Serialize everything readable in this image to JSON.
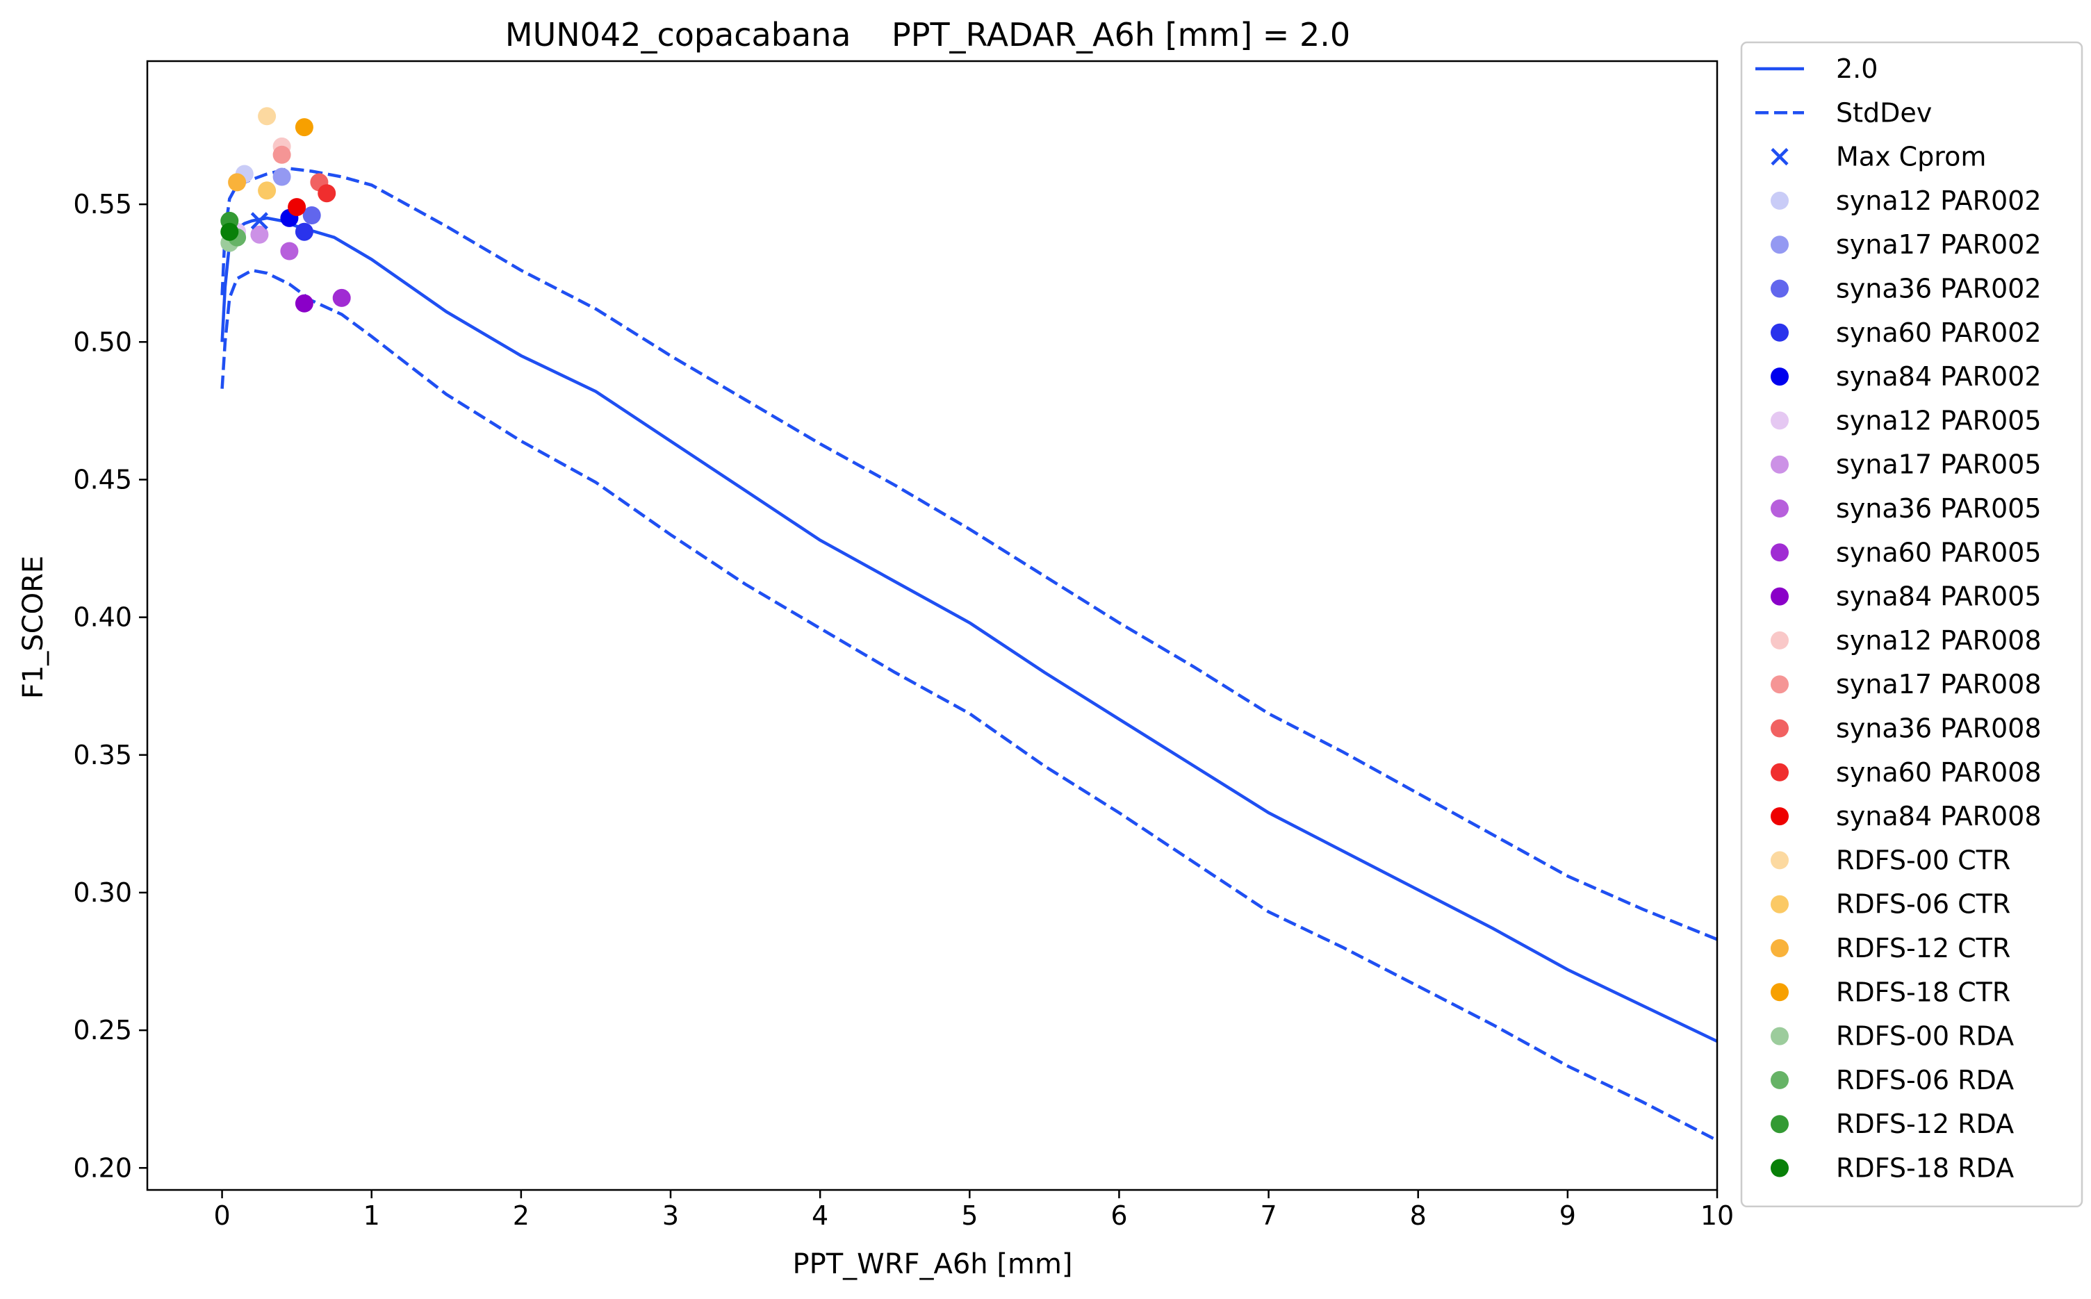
{
  "chart_data": {
    "type": "line",
    "title": "MUN042_copacabana    PPT_RADAR_A6h [mm] = 2.0",
    "xlabel": "PPT_WRF_A6h [mm]",
    "ylabel": "F1_SCORE",
    "xlim": [
      -0.5,
      10
    ],
    "ylim": [
      0.192,
      0.602
    ],
    "xticks": [
      0,
      1,
      2,
      3,
      4,
      5,
      6,
      7,
      8,
      9,
      10
    ],
    "yticks": [
      0.2,
      0.25,
      0.3,
      0.35,
      0.4,
      0.45,
      0.5,
      0.55
    ],
    "ytick_labels": [
      "0.20",
      "0.25",
      "0.30",
      "0.35",
      "0.40",
      "0.45",
      "0.50",
      "0.55"
    ],
    "grid": false,
    "legend_position": "outside-right",
    "series": [
      {
        "name": "2.0",
        "style": "solid",
        "color": "#1f4ff2",
        "points": [
          [
            0.0,
            0.5
          ],
          [
            0.02,
            0.52
          ],
          [
            0.05,
            0.536
          ],
          [
            0.1,
            0.541
          ],
          [
            0.15,
            0.543
          ],
          [
            0.2,
            0.544
          ],
          [
            0.3,
            0.545
          ],
          [
            0.4,
            0.544
          ],
          [
            0.5,
            0.542
          ],
          [
            0.75,
            0.538
          ],
          [
            1.0,
            0.53
          ],
          [
            1.5,
            0.511
          ],
          [
            2.0,
            0.495
          ],
          [
            2.5,
            0.482
          ],
          [
            3.0,
            0.464
          ],
          [
            3.5,
            0.446
          ],
          [
            4.0,
            0.428
          ],
          [
            4.5,
            0.413
          ],
          [
            5.0,
            0.398
          ],
          [
            5.5,
            0.38
          ],
          [
            6.0,
            0.363
          ],
          [
            6.5,
            0.346
          ],
          [
            7.0,
            0.329
          ],
          [
            7.5,
            0.315
          ],
          [
            8.0,
            0.301
          ],
          [
            8.5,
            0.287
          ],
          [
            9.0,
            0.272
          ],
          [
            9.5,
            0.259
          ],
          [
            10.0,
            0.246
          ]
        ]
      },
      {
        "name": "StdDev",
        "style": "dashed",
        "color": "#1f4ff2",
        "points": [
          [
            0.0,
            0.517
          ],
          [
            0.02,
            0.54
          ],
          [
            0.05,
            0.552
          ],
          [
            0.1,
            0.557
          ],
          [
            0.2,
            0.559
          ],
          [
            0.3,
            0.561
          ],
          [
            0.45,
            0.563
          ],
          [
            0.6,
            0.562
          ],
          [
            0.8,
            0.56
          ],
          [
            1.0,
            0.557
          ],
          [
            1.5,
            0.542
          ],
          [
            2.0,
            0.526
          ],
          [
            2.5,
            0.512
          ],
          [
            3.0,
            0.495
          ],
          [
            3.5,
            0.479
          ],
          [
            4.0,
            0.463
          ],
          [
            4.5,
            0.448
          ],
          [
            5.0,
            0.432
          ],
          [
            5.5,
            0.415
          ],
          [
            6.0,
            0.398
          ],
          [
            6.5,
            0.382
          ],
          [
            7.0,
            0.365
          ],
          [
            7.5,
            0.351
          ],
          [
            8.0,
            0.336
          ],
          [
            8.5,
            0.321
          ],
          [
            9.0,
            0.306
          ],
          [
            9.5,
            0.294
          ],
          [
            10.0,
            0.283
          ]
        ]
      },
      {
        "name": "",
        "style": "dashed",
        "color": "#1f4ff2",
        "points": [
          [
            0.0,
            0.483
          ],
          [
            0.02,
            0.5
          ],
          [
            0.05,
            0.516
          ],
          [
            0.1,
            0.523
          ],
          [
            0.2,
            0.526
          ],
          [
            0.3,
            0.525
          ],
          [
            0.45,
            0.521
          ],
          [
            0.6,
            0.515
          ],
          [
            0.8,
            0.51
          ],
          [
            1.0,
            0.502
          ],
          [
            1.5,
            0.481
          ],
          [
            2.0,
            0.464
          ],
          [
            2.5,
            0.449
          ],
          [
            3.0,
            0.43
          ],
          [
            3.5,
            0.412
          ],
          [
            4.0,
            0.396
          ],
          [
            4.5,
            0.38
          ],
          [
            5.0,
            0.365
          ],
          [
            5.5,
            0.346
          ],
          [
            6.0,
            0.329
          ],
          [
            6.5,
            0.311
          ],
          [
            7.0,
            0.293
          ],
          [
            7.5,
            0.28
          ],
          [
            8.0,
            0.266
          ],
          [
            8.5,
            0.252
          ],
          [
            9.0,
            0.237
          ],
          [
            9.5,
            0.224
          ],
          [
            10.0,
            0.21
          ]
        ]
      }
    ],
    "max_marker": {
      "name": "Max Cprom",
      "x": 0.25,
      "y": 0.544,
      "color": "#1f4ff2"
    },
    "scatter": [
      {
        "name": "syna12 PAR002",
        "color": "#c9ccf7",
        "x": 0.15,
        "y": 0.561
      },
      {
        "name": "syna17 PAR002",
        "color": "#9499f2",
        "x": 0.4,
        "y": 0.56
      },
      {
        "name": "syna36 PAR002",
        "color": "#6166ed",
        "x": 0.6,
        "y": 0.546
      },
      {
        "name": "syna60 PAR002",
        "color": "#2a33ec",
        "x": 0.55,
        "y": 0.54
      },
      {
        "name": "syna84 PAR002",
        "color": "#0000ee",
        "x": 0.45,
        "y": 0.545
      },
      {
        "name": "syna12 PAR005",
        "color": "#e5c8f2",
        "x": 0.1,
        "y": 0.54
      },
      {
        "name": "syna17 PAR005",
        "color": "#cc91e6",
        "x": 0.25,
        "y": 0.539
      },
      {
        "name": "syna36 PAR005",
        "color": "#b75fdc",
        "x": 0.45,
        "y": 0.533
      },
      {
        "name": "syna60 PAR005",
        "color": "#a02cd3",
        "x": 0.8,
        "y": 0.516
      },
      {
        "name": "syna84 PAR005",
        "color": "#8a00c8",
        "x": 0.55,
        "y": 0.514
      },
      {
        "name": "syna12 PAR008",
        "color": "#f9c8c8",
        "x": 0.4,
        "y": 0.571
      },
      {
        "name": "syna17 PAR008",
        "color": "#f59595",
        "x": 0.4,
        "y": 0.568
      },
      {
        "name": "syna36 PAR008",
        "color": "#f16161",
        "x": 0.65,
        "y": 0.558
      },
      {
        "name": "syna60 PAR008",
        "color": "#f02e2e",
        "x": 0.7,
        "y": 0.554
      },
      {
        "name": "syna84 PAR008",
        "color": "#ee0000",
        "x": 0.5,
        "y": 0.549
      },
      {
        "name": "RDFS-00 CTR",
        "color": "#fcd9a0",
        "x": 0.3,
        "y": 0.582
      },
      {
        "name": "RDFS-06 CTR",
        "color": "#fbc964",
        "x": 0.3,
        "y": 0.555
      },
      {
        "name": "RDFS-12 CTR",
        "color": "#f9b23a",
        "x": 0.1,
        "y": 0.558
      },
      {
        "name": "RDFS-18 CTR",
        "color": "#f7a000",
        "x": 0.55,
        "y": 0.578
      },
      {
        "name": "RDFS-00 RDA",
        "color": "#9ccc9c",
        "x": 0.05,
        "y": 0.536
      },
      {
        "name": "RDFS-06 RDA",
        "color": "#66b366",
        "x": 0.1,
        "y": 0.538
      },
      {
        "name": "RDFS-12 RDA",
        "color": "#339a33",
        "x": 0.05,
        "y": 0.544
      },
      {
        "name": "RDFS-18 RDA",
        "color": "#088008",
        "x": 0.05,
        "y": 0.54
      }
    ],
    "legend": [
      {
        "label": "2.0",
        "kind": "line",
        "color": "#1f4ff2"
      },
      {
        "label": "StdDev",
        "kind": "dashed",
        "color": "#1f4ff2"
      },
      {
        "label": "Max Cprom",
        "kind": "x",
        "color": "#1f4ff2"
      },
      {
        "label": "syna12 PAR002",
        "kind": "dot",
        "color": "#c9ccf7"
      },
      {
        "label": "syna17 PAR002",
        "kind": "dot",
        "color": "#9499f2"
      },
      {
        "label": "syna36 PAR002",
        "kind": "dot",
        "color": "#6166ed"
      },
      {
        "label": "syna60 PAR002",
        "kind": "dot",
        "color": "#2a33ec"
      },
      {
        "label": "syna84 PAR002",
        "kind": "dot",
        "color": "#0000ee"
      },
      {
        "label": "syna12 PAR005",
        "kind": "dot",
        "color": "#e5c8f2"
      },
      {
        "label": "syna17 PAR005",
        "kind": "dot",
        "color": "#cc91e6"
      },
      {
        "label": "syna36 PAR005",
        "kind": "dot",
        "color": "#b75fdc"
      },
      {
        "label": "syna60 PAR005",
        "kind": "dot",
        "color": "#a02cd3"
      },
      {
        "label": "syna84 PAR005",
        "kind": "dot",
        "color": "#8a00c8"
      },
      {
        "label": "syna12 PAR008",
        "kind": "dot",
        "color": "#f9c8c8"
      },
      {
        "label": "syna17 PAR008",
        "kind": "dot",
        "color": "#f59595"
      },
      {
        "label": "syna36 PAR008",
        "kind": "dot",
        "color": "#f16161"
      },
      {
        "label": "syna60 PAR008",
        "kind": "dot",
        "color": "#f02e2e"
      },
      {
        "label": "syna84 PAR008",
        "kind": "dot",
        "color": "#ee0000"
      },
      {
        "label": " RDFS-00 CTR",
        "kind": "dot",
        "color": "#fcd9a0"
      },
      {
        "label": " RDFS-06 CTR",
        "kind": "dot",
        "color": "#fbc964"
      },
      {
        "label": " RDFS-12 CTR",
        "kind": "dot",
        "color": "#f9b23a"
      },
      {
        "label": " RDFS-18 CTR",
        "kind": "dot",
        "color": "#f7a000"
      },
      {
        "label": " RDFS-00 RDA",
        "kind": "dot",
        "color": "#9ccc9c"
      },
      {
        "label": " RDFS-06 RDA",
        "kind": "dot",
        "color": "#66b366"
      },
      {
        "label": " RDFS-12 RDA",
        "kind": "dot",
        "color": "#339a33"
      },
      {
        "label": " RDFS-18 RDA",
        "kind": "dot",
        "color": "#088008"
      }
    ]
  }
}
